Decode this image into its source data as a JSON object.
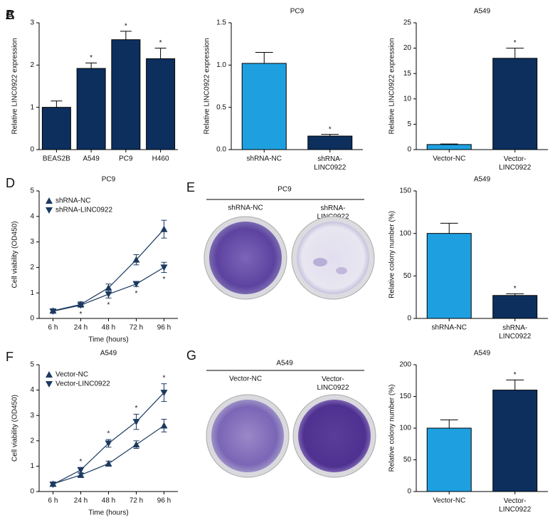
{
  "chart_data": [
    {
      "type": "bar",
      "panel": "A",
      "ylabel": "Relative LINC0922 expression",
      "categories": [
        "BEAS2B",
        "A549",
        "PC9",
        "H460"
      ],
      "values": [
        1.0,
        1.92,
        2.6,
        2.15
      ],
      "errors": [
        0.15,
        0.13,
        0.2,
        0.25
      ],
      "significance": [
        null,
        "*",
        "*",
        "*"
      ],
      "color": "#0c2f5e",
      "ylim": [
        0,
        3
      ],
      "yticks": [
        0,
        1,
        2,
        3
      ]
    },
    {
      "type": "bar",
      "panel": "B",
      "title": "PC9",
      "ylabel": "Relative LINC0922 expression",
      "categories": [
        "shRNA-NC",
        "shRNA-\nLINC0922"
      ],
      "values": [
        1.02,
        0.16
      ],
      "errors": [
        0.13,
        0.02
      ],
      "significance": [
        null,
        "*"
      ],
      "colors": [
        "#1ea0e0",
        "#0c2f5e"
      ],
      "ylim": [
        0,
        1.5
      ],
      "yticks": [
        {
          "value": 0,
          "label": "0.0"
        },
        {
          "value": 0.5,
          "label": "0.5"
        },
        {
          "value": 1,
          "label": "1.0"
        },
        {
          "value": 1.5,
          "label": "1.5"
        }
      ]
    },
    {
      "type": "bar",
      "panel": "C",
      "title": "A549",
      "ylabel": "Relative LINC0922 expression",
      "categories": [
        "Vector-NC",
        "Vector-\nLINC0922"
      ],
      "values": [
        1.0,
        18
      ],
      "errors": [
        0.1,
        2
      ],
      "significance": [
        null,
        "*"
      ],
      "colors": [
        "#1ea0e0",
        "#0c2f5e"
      ],
      "ylim": [
        0,
        25
      ],
      "yticks": [
        0,
        5,
        10,
        15,
        20,
        25
      ]
    },
    {
      "type": "line",
      "panel": "D",
      "title": "PC9",
      "xlabel": "Time (hours)",
      "ylabel": "Cell viability (OD450)",
      "categories": [
        "6 h",
        "24 h",
        "48 h",
        "72 h",
        "96 h"
      ],
      "legend": "upper left",
      "ylim": [
        0,
        5
      ],
      "yticks": [
        0,
        1,
        2,
        3,
        4,
        5
      ],
      "series": [
        {
          "name": "shRNA-NC",
          "color": "#1c3a60",
          "marker": "triangle-up",
          "values": [
            0.3,
            0.55,
            1.2,
            2.3,
            3.5
          ],
          "errors": [
            0.05,
            0.1,
            0.15,
            0.2,
            0.35
          ],
          "significance": [
            null,
            null,
            null,
            null,
            null
          ]
        },
        {
          "name": "shRNA-LINC0922",
          "color": "#1c3a60",
          "marker": "triangle-down",
          "values": [
            0.28,
            0.52,
            0.95,
            1.35,
            2.0
          ],
          "errors": [
            0.05,
            0.08,
            0.15,
            0.1,
            0.2
          ],
          "significance": [
            null,
            "*",
            "*",
            "*",
            "*"
          ]
        }
      ]
    },
    {
      "type": "bar",
      "title": "A549",
      "ylabel": "Relative colony number (%)",
      "categories": [
        "shRNA-NC",
        "shRNA-\nLINC0922"
      ],
      "values": [
        100,
        27
      ],
      "errors": [
        12,
        2
      ],
      "significance": [
        null,
        "*"
      ],
      "colors": [
        "#1ea0e0",
        "#0c2f5e"
      ],
      "ylim": [
        0,
        150
      ],
      "yticks": [
        0,
        50,
        100,
        150
      ]
    },
    {
      "type": "line",
      "panel": "F",
      "title": "A549",
      "xlabel": "Time (hours)",
      "ylabel": "Cell viability (OD450)",
      "categories": [
        "6 h",
        "24 h",
        "48 h",
        "72 h",
        "96 h"
      ],
      "legend": "upper left",
      "ylim": [
        0,
        5
      ],
      "yticks": [
        0,
        1,
        2,
        3,
        4,
        5
      ],
      "series": [
        {
          "name": "Vector-NC",
          "color": "#1c3a60",
          "marker": "triangle-up",
          "values": [
            0.3,
            0.65,
            1.1,
            1.85,
            2.6
          ],
          "errors": [
            0.05,
            0.07,
            0.1,
            0.15,
            0.25
          ],
          "significance": [
            null,
            null,
            null,
            null,
            null
          ]
        },
        {
          "name": "Vector-LINC0922",
          "color": "#1c3a60",
          "marker": "triangle-down",
          "values": [
            0.28,
            0.85,
            1.9,
            2.75,
            3.9
          ],
          "errors": [
            0.05,
            0.1,
            0.15,
            0.3,
            0.35
          ],
          "significance": [
            null,
            "*",
            "*",
            "*",
            "*"
          ]
        }
      ]
    },
    {
      "type": "bar",
      "title": "A549",
      "ylabel": "Relative colony number (%)",
      "categories": [
        "Vector-NC",
        "Vector-\nLINC0922"
      ],
      "values": [
        100,
        160
      ],
      "errors": [
        13,
        16
      ],
      "significance": [
        null,
        "*"
      ],
      "colors": [
        "#1ea0e0",
        "#0c2f5e"
      ],
      "ylim": [
        0,
        200
      ],
      "yticks": [
        0,
        50,
        100,
        150,
        200
      ]
    }
  ],
  "photos": [
    {
      "panel": "E",
      "title": "PC9",
      "labels": [
        "shRNA-NC",
        "shRNA-\nLINC0922"
      ]
    },
    {
      "panel": "G",
      "title": "A549",
      "labels": [
        "Vector-NC",
        "Vector-\nLINC0922"
      ]
    }
  ]
}
